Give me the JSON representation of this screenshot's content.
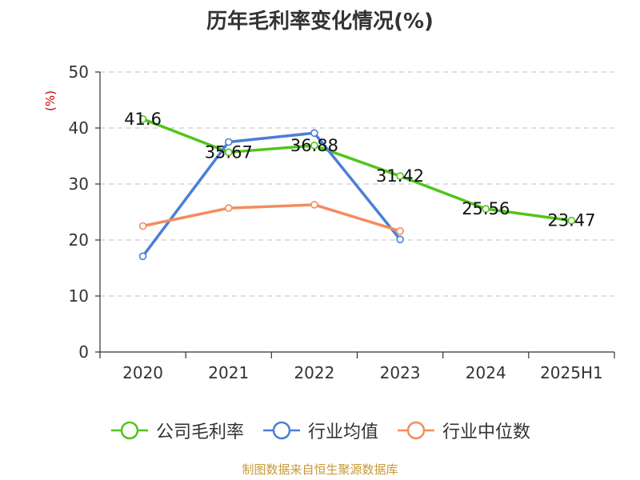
{
  "title": "历年毛利率变化情况(%)",
  "source": "制图数据来自恒生聚源数据库",
  "chart_data": {
    "type": "line",
    "title": "历年毛利率变化情况(%)",
    "ylabel": "(%)",
    "xlabel": "",
    "ylim": [
      0,
      50
    ],
    "yticks": [
      0,
      10,
      20,
      30,
      40,
      50
    ],
    "grid": true,
    "legend_position": "bottom",
    "categories": [
      "2020",
      "2021",
      "2022",
      "2023",
      "2024",
      "2025H1"
    ],
    "series": [
      {
        "name": "公司毛利率",
        "color": "#52c41a",
        "values": [
          41.6,
          35.67,
          36.88,
          31.42,
          25.56,
          23.47
        ],
        "data_labels": [
          "41.6",
          "35.67",
          "36.88",
          "31.42",
          "25.56",
          "23.47"
        ]
      },
      {
        "name": "行业均值",
        "color": "#4a7fd6",
        "values": [
          17.1,
          37.5,
          39.1,
          20.1,
          null,
          null
        ]
      },
      {
        "name": "行业中位数",
        "color": "#f48c5c",
        "values": [
          22.5,
          25.7,
          26.3,
          21.6,
          null,
          null
        ]
      }
    ]
  }
}
